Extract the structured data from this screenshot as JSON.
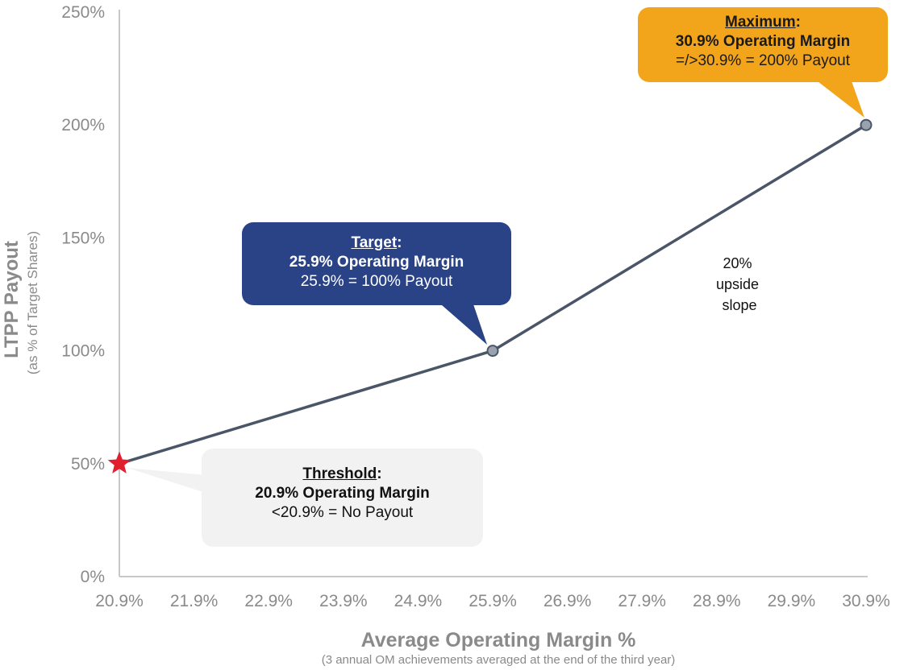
{
  "chart_data": {
    "type": "line",
    "x": [
      "20.9%",
      "25.9%",
      "30.9%"
    ],
    "x_values": [
      20.9,
      25.9,
      30.9
    ],
    "y": [
      50,
      100,
      200
    ],
    "xticks": [
      "20.9%",
      "21.9%",
      "22.9%",
      "23.9%",
      "24.9%",
      "25.9%",
      "26.9%",
      "27.9%",
      "28.9%",
      "29.9%",
      "30.9%"
    ],
    "xtick_values": [
      20.9,
      21.9,
      22.9,
      23.9,
      24.9,
      25.9,
      26.9,
      27.9,
      28.9,
      29.9,
      30.9
    ],
    "yticks": [
      "0%",
      "50%",
      "100%",
      "150%",
      "200%",
      "250%"
    ],
    "ytick_values": [
      0,
      50,
      100,
      150,
      200,
      250
    ],
    "xlim": [
      20.9,
      30.9
    ],
    "ylim": [
      0,
      250
    ],
    "grid": false,
    "ylabel": "LTPP Payout",
    "ylabel_sub": "(as % of Target Shares)",
    "xlabel": "Average Operating Margin %",
    "xlabel_sub": "(3 annual OM achievements averaged at the end of the third year)",
    "line_color": "#4a5668",
    "threshold_marker_color": "#e0202e",
    "annotations": {
      "slope_lines": [
        "20%",
        "upside",
        "slope"
      ],
      "threshold": {
        "heading": "Threshold",
        "line1": "20.9% Operating Margin",
        "line2": "<20.9% = No Payout",
        "color": "#f2f2f2"
      },
      "target": {
        "heading": "Target",
        "line1": "25.9% Operating Margin",
        "line2": "25.9% = 100% Payout",
        "color": "#2a4387"
      },
      "maximum": {
        "heading": "Maximum",
        "line1": "30.9% Operating Margin",
        "line2": "=/>30.9% = 200% Payout",
        "color": "#f2a51b"
      }
    }
  }
}
